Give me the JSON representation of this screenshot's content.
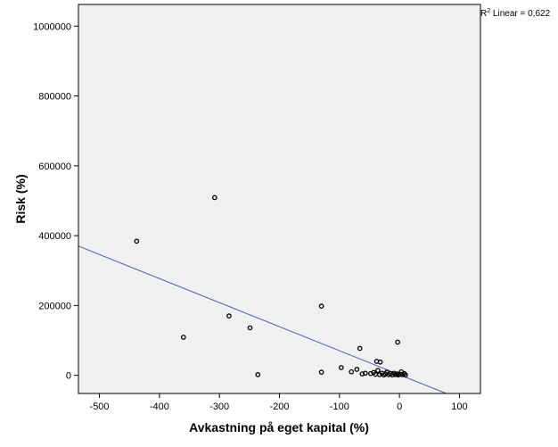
{
  "chart_data": {
    "type": "scatter",
    "title": "",
    "xlabel": "Avkastning på eget kapital (%)",
    "ylabel": "Risk (%)",
    "xlim": [
      -535,
      135
    ],
    "ylim": [
      -52000,
      1062000
    ],
    "x_ticks": [
      -500,
      -400,
      -300,
      -200,
      -100,
      0,
      100
    ],
    "y_ticks": [
      0,
      200000,
      400000,
      600000,
      800000,
      1000000
    ],
    "x_tick_labels": [
      "-500",
      "-400",
      "-300",
      "-200",
      "-100",
      "0",
      "100"
    ],
    "y_tick_labels": [
      "0",
      "200000",
      "400000",
      "600000",
      "800000",
      "1000000"
    ],
    "grid": false,
    "annotation": {
      "r_label": "R",
      "sup": "2",
      "text": " Linear = 0,622"
    },
    "colors": {
      "plot_bg": "#f0f0f0",
      "fit_line": "#4a63b4",
      "points": "#000000",
      "frame": "#000000"
    },
    "fit_line": {
      "x": [
        -535,
        78
      ],
      "y": [
        370000,
        -52000
      ]
    },
    "points": [
      {
        "x": -438,
        "y": 384000
      },
      {
        "x": -308,
        "y": 509000
      },
      {
        "x": -360,
        "y": 109000
      },
      {
        "x": -284,
        "y": 170000
      },
      {
        "x": -249,
        "y": 136000
      },
      {
        "x": -236,
        "y": 2000
      },
      {
        "x": -130,
        "y": 198000
      },
      {
        "x": -130,
        "y": 9000
      },
      {
        "x": -97,
        "y": 22000
      },
      {
        "x": -66,
        "y": 77000
      },
      {
        "x": -3,
        "y": 95000
      },
      {
        "x": -38,
        "y": 40000
      },
      {
        "x": -32,
        "y": 38000
      },
      {
        "x": -80,
        "y": 10000
      },
      {
        "x": -71,
        "y": 17000
      },
      {
        "x": -62,
        "y": 4000
      },
      {
        "x": -57,
        "y": 6000
      },
      {
        "x": -48,
        "y": 5000
      },
      {
        "x": -43,
        "y": 8000
      },
      {
        "x": -40,
        "y": 3000
      },
      {
        "x": -36,
        "y": 14000
      },
      {
        "x": -33,
        "y": 2000
      },
      {
        "x": -29,
        "y": 6000
      },
      {
        "x": -26,
        "y": 1000
      },
      {
        "x": -23,
        "y": 4000
      },
      {
        "x": -21,
        "y": 9000
      },
      {
        "x": -18,
        "y": 2000
      },
      {
        "x": -15,
        "y": 5000
      },
      {
        "x": -12,
        "y": 1000
      },
      {
        "x": -9,
        "y": 6000
      },
      {
        "x": -7,
        "y": 2000
      },
      {
        "x": -4,
        "y": 4000
      },
      {
        "x": -2,
        "y": 1000
      },
      {
        "x": 1,
        "y": 3000
      },
      {
        "x": 3,
        "y": 10000
      },
      {
        "x": 5,
        "y": 2000
      },
      {
        "x": 8,
        "y": 5000
      },
      {
        "x": 10,
        "y": 1000
      }
    ]
  }
}
